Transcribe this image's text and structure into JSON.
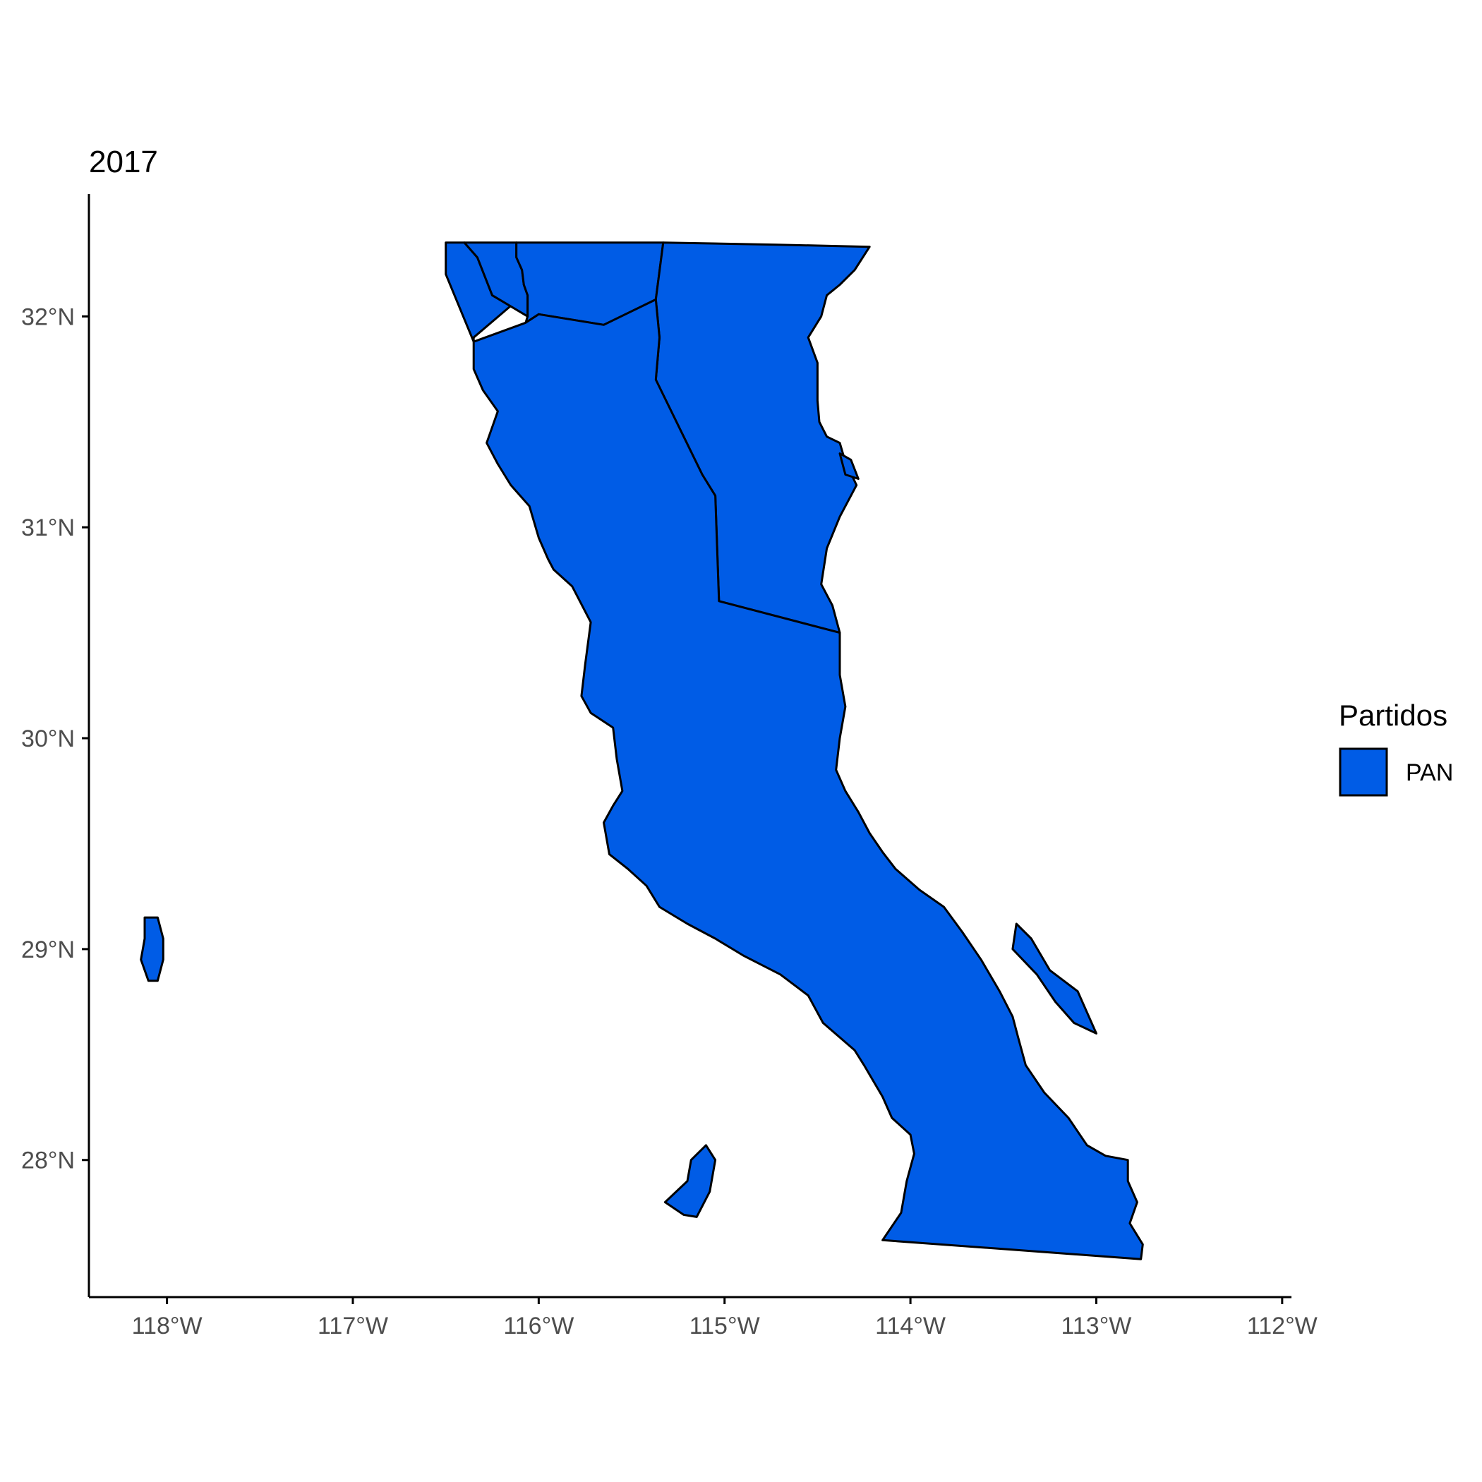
{
  "title": "2017",
  "legend": {
    "title": "Partidos",
    "entries": [
      {
        "label": "PAN",
        "color": "#005CE6"
      }
    ]
  },
  "colors": {
    "fill": "#005CE6",
    "stroke": "#000000",
    "axis": "#000000",
    "tick_label": "#4d4d4d"
  },
  "chart_data": {
    "type": "choropleth",
    "title": "2017",
    "legend_placement": "right",
    "grid": false,
    "xlim": [
      -118.42,
      -111.95
    ],
    "ylim": [
      27.35,
      32.58
    ],
    "x_ticks": [
      {
        "value": -118,
        "label": "118°W"
      },
      {
        "value": -117,
        "label": "117°W"
      },
      {
        "value": -116,
        "label": "116°W"
      },
      {
        "value": -115,
        "label": "115°W"
      },
      {
        "value": -114,
        "label": "114°W"
      },
      {
        "value": -113,
        "label": "113°W"
      },
      {
        "value": -112,
        "label": "112°W"
      }
    ],
    "y_ticks": [
      {
        "value": 28,
        "label": "28°N"
      },
      {
        "value": 29,
        "label": "29°N"
      },
      {
        "value": 30,
        "label": "30°N"
      },
      {
        "value": 31,
        "label": "31°N"
      },
      {
        "value": 32,
        "label": "32°N"
      }
    ],
    "regions": [
      {
        "party": "PAN",
        "coords": [
          [
            -116.5,
            32.35
          ],
          [
            -116.4,
            32.35
          ],
          [
            -116.33,
            32.28
          ],
          [
            -116.25,
            32.1
          ],
          [
            -116.15,
            32.05
          ],
          [
            -116.35,
            31.9
          ],
          [
            -116.35,
            31.88
          ],
          [
            -116.5,
            32.2
          ]
        ]
      },
      {
        "party": "PAN",
        "coords": [
          [
            -116.12,
            32.35
          ],
          [
            -116.12,
            32.28
          ],
          [
            -116.09,
            32.22
          ],
          [
            -116.08,
            32.15
          ],
          [
            -116.06,
            32.1
          ],
          [
            -116.06,
            32.0
          ],
          [
            -116.25,
            32.1
          ],
          [
            -116.33,
            32.28
          ],
          [
            -116.4,
            32.35
          ]
        ]
      },
      {
        "party": "PAN",
        "coords": [
          [
            -116.12,
            32.35
          ],
          [
            -115.33,
            32.35
          ],
          [
            -115.37,
            32.08
          ],
          [
            -115.65,
            31.96
          ],
          [
            -116.0,
            32.01
          ],
          [
            -116.07,
            31.97
          ],
          [
            -116.06,
            32.0
          ],
          [
            -116.06,
            32.1
          ],
          [
            -116.08,
            32.15
          ],
          [
            -116.09,
            32.22
          ],
          [
            -116.12,
            32.28
          ]
        ]
      },
      {
        "party": "PAN",
        "coords": [
          [
            -115.33,
            32.35
          ],
          [
            -114.72,
            32.34
          ],
          [
            -114.22,
            32.33
          ],
          [
            -114.3,
            32.22
          ],
          [
            -114.38,
            32.15
          ],
          [
            -114.45,
            32.1
          ],
          [
            -114.48,
            32.0
          ],
          [
            -114.55,
            31.9
          ],
          [
            -114.5,
            31.78
          ],
          [
            -114.5,
            31.6
          ],
          [
            -114.49,
            31.5
          ],
          [
            -114.45,
            31.43
          ],
          [
            -114.38,
            31.4
          ],
          [
            -114.35,
            31.31
          ],
          [
            -114.29,
            31.2
          ],
          [
            -114.38,
            31.05
          ],
          [
            -114.45,
            30.9
          ],
          [
            -114.48,
            30.73
          ],
          [
            -114.42,
            30.63
          ],
          [
            -114.38,
            30.5
          ],
          [
            -115.03,
            30.65
          ],
          [
            -115.05,
            31.15
          ],
          [
            -115.12,
            31.25
          ],
          [
            -115.37,
            31.7
          ],
          [
            -115.35,
            31.9
          ],
          [
            -115.37,
            32.08
          ]
        ]
      },
      {
        "party": "PAN",
        "coords": [
          [
            -116.35,
            31.88
          ],
          [
            -116.07,
            31.97
          ],
          [
            -116.0,
            32.01
          ],
          [
            -115.65,
            31.96
          ],
          [
            -115.37,
            32.08
          ],
          [
            -115.35,
            31.9
          ],
          [
            -115.37,
            31.7
          ],
          [
            -115.12,
            31.25
          ],
          [
            -115.05,
            31.15
          ],
          [
            -115.03,
            30.65
          ],
          [
            -114.38,
            30.5
          ],
          [
            -114.38,
            30.3
          ],
          [
            -114.35,
            30.15
          ],
          [
            -114.38,
            30.0
          ],
          [
            -114.4,
            29.85
          ],
          [
            -114.35,
            29.75
          ],
          [
            -114.28,
            29.65
          ],
          [
            -114.22,
            29.55
          ],
          [
            -114.15,
            29.46
          ],
          [
            -114.08,
            29.38
          ],
          [
            -113.95,
            29.28
          ],
          [
            -113.82,
            29.2
          ],
          [
            -113.72,
            29.08
          ],
          [
            -113.62,
            28.95
          ],
          [
            -113.52,
            28.8
          ],
          [
            -113.45,
            28.68
          ],
          [
            -113.42,
            28.58
          ],
          [
            -113.38,
            28.45
          ],
          [
            -113.28,
            28.32
          ],
          [
            -113.15,
            28.2
          ],
          [
            -113.05,
            28.07
          ],
          [
            -112.95,
            28.02
          ],
          [
            -112.83,
            28.0
          ],
          [
            -112.83,
            27.9
          ],
          [
            -112.78,
            27.8
          ],
          [
            -112.82,
            27.7
          ],
          [
            -112.75,
            27.6
          ],
          [
            -112.76,
            27.53
          ],
          [
            -114.15,
            27.62
          ],
          [
            -114.05,
            27.75
          ],
          [
            -114.02,
            27.9
          ],
          [
            -113.98,
            28.03
          ],
          [
            -114.0,
            28.12
          ],
          [
            -114.1,
            28.2
          ],
          [
            -114.15,
            28.3
          ],
          [
            -114.25,
            28.45
          ],
          [
            -114.3,
            28.52
          ],
          [
            -114.47,
            28.65
          ],
          [
            -114.55,
            28.78
          ],
          [
            -114.7,
            28.88
          ],
          [
            -114.9,
            28.97
          ],
          [
            -115.05,
            29.05
          ],
          [
            -115.2,
            29.12
          ],
          [
            -115.35,
            29.2
          ],
          [
            -115.42,
            29.3
          ],
          [
            -115.52,
            29.38
          ],
          [
            -115.62,
            29.45
          ],
          [
            -115.65,
            29.6
          ],
          [
            -115.6,
            29.68
          ],
          [
            -115.55,
            29.75
          ],
          [
            -115.58,
            29.9
          ],
          [
            -115.6,
            30.05
          ],
          [
            -115.72,
            30.12
          ],
          [
            -115.77,
            30.2
          ],
          [
            -115.75,
            30.35
          ],
          [
            -115.72,
            30.55
          ],
          [
            -115.82,
            30.72
          ],
          [
            -115.92,
            30.8
          ],
          [
            -115.95,
            30.85
          ],
          [
            -116.0,
            30.95
          ],
          [
            -116.05,
            31.1
          ],
          [
            -116.15,
            31.2
          ],
          [
            -116.22,
            31.3
          ],
          [
            -116.28,
            31.4
          ],
          [
            -116.22,
            31.55
          ],
          [
            -116.3,
            31.65
          ],
          [
            -116.35,
            31.75
          ]
        ]
      },
      {
        "party": "PAN",
        "coords": [
          [
            -118.12,
            29.15
          ],
          [
            -118.05,
            29.15
          ],
          [
            -118.02,
            29.05
          ],
          [
            -118.02,
            28.95
          ],
          [
            -118.05,
            28.85
          ],
          [
            -118.1,
            28.85
          ],
          [
            -118.14,
            28.95
          ],
          [
            -118.12,
            29.05
          ]
        ]
      },
      {
        "party": "PAN",
        "coords": [
          [
            -115.1,
            28.07
          ],
          [
            -115.05,
            28.0
          ],
          [
            -115.08,
            27.85
          ],
          [
            -115.15,
            27.73
          ],
          [
            -115.22,
            27.74
          ],
          [
            -115.32,
            27.8
          ],
          [
            -115.2,
            27.9
          ],
          [
            -115.18,
            28.0
          ]
        ]
      },
      {
        "party": "PAN",
        "coords": [
          [
            -113.43,
            29.12
          ],
          [
            -113.35,
            29.05
          ],
          [
            -113.25,
            28.9
          ],
          [
            -113.1,
            28.8
          ],
          [
            -113.0,
            28.6
          ],
          [
            -113.12,
            28.65
          ],
          [
            -113.22,
            28.75
          ],
          [
            -113.32,
            28.88
          ],
          [
            -113.45,
            29.0
          ]
        ]
      },
      {
        "party": "PAN",
        "coords": [
          [
            -114.38,
            31.35
          ],
          [
            -114.35,
            31.25
          ],
          [
            -114.28,
            31.23
          ],
          [
            -114.32,
            31.32
          ]
        ]
      }
    ]
  }
}
